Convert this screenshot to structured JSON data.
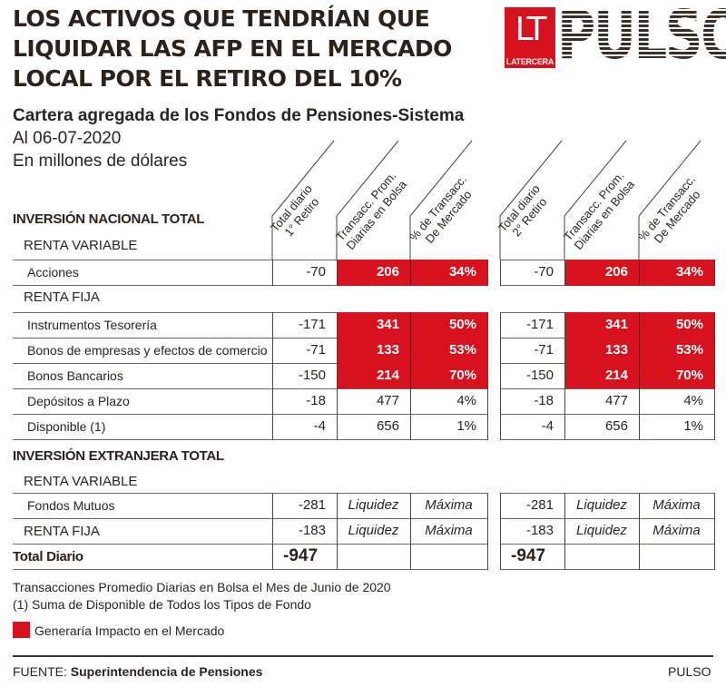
{
  "header": {
    "title_lines": [
      "LOS ACTIVOS QUE TENDRÍAN QUE",
      "LIQUIDAR LAS AFP EN EL MERCADO",
      "LOCAL POR EL RETIRO DEL 10%"
    ],
    "logo": {
      "lt": "LT",
      "lt_sub": "LATERCERA",
      "brand": "PULSO"
    },
    "subtitle": "Cartera agregada de los Fondos de Pensiones-Sistema",
    "date": "Al 06-07-2020",
    "units": "En millones de dólares"
  },
  "columns": {
    "first": [
      {
        "line1": "Total diario",
        "line2": "1° Retiro"
      },
      {
        "line1": "Transacc. Prom.",
        "line2": "Diarias en Bolsa"
      },
      {
        "line1": "% de Transacc.",
        "line2": "De Mercado"
      }
    ],
    "second": [
      {
        "line1": "Total diario",
        "line2": "2° Retiro"
      },
      {
        "line1": "Transacc. Prom.",
        "line2": "Diarias en Bolsa"
      },
      {
        "line1": "% de Transacc.",
        "line2": "De Mercado"
      }
    ]
  },
  "sections": {
    "nacional": "INVERSIÓN NACIONAL TOTAL",
    "nac_rv": "RENTA VARIABLE",
    "nac_rf": "RENTA FIJA",
    "extranjera": "INVERSIÓN EXTRANJERA TOTAL",
    "ext_rv": "RENTA VARIABLE"
  },
  "rows": [
    {
      "label": "Acciones",
      "total1": "-70",
      "trans1": "206",
      "pct1": "34%",
      "total2": "-70",
      "trans2": "206",
      "pct2": "34%",
      "impact": true
    },
    {
      "label": "Instrumentos Tesorería",
      "total1": "-171",
      "trans1": "341",
      "pct1": "50%",
      "total2": "-171",
      "trans2": "341",
      "pct2": "50%",
      "impact": true
    },
    {
      "label": "Bonos de empresas y efectos de comercio",
      "total1": "-71",
      "trans1": "133",
      "pct1": "53%",
      "total2": "-71",
      "trans2": "133",
      "pct2": "53%",
      "impact": true
    },
    {
      "label": "Bonos Bancarios",
      "total1": "-150",
      "trans1": "214",
      "pct1": "70%",
      "total2": "-150",
      "trans2": "214",
      "pct2": "70%",
      "impact": true
    },
    {
      "label": "Depósitos a Plazo",
      "total1": "-18",
      "trans1": "477",
      "pct1": "4%",
      "total2": "-18",
      "trans2": "477",
      "pct2": "4%",
      "impact": false
    },
    {
      "label": "Disponible (1)",
      "total1": "-4",
      "trans1": "656",
      "pct1": "1%",
      "total2": "-4",
      "trans2": "656",
      "pct2": "1%",
      "impact": false
    },
    {
      "label": "Fondos Mutuos",
      "total1": "-281",
      "trans1": "Liquidez",
      "pct1": "Máxima",
      "total2": "-281",
      "trans2": "Liquidez",
      "pct2": "Máxima",
      "impact": false
    },
    {
      "label": "RENTA FIJA",
      "total1": "-183",
      "trans1": "Liquidez",
      "pct1": "Máxima",
      "total2": "-183",
      "trans2": "Liquidez",
      "pct2": "Máxima",
      "impact": false
    }
  ],
  "total": {
    "label": "Total Diario",
    "total1": "-947",
    "total2": "-947"
  },
  "notes": {
    "note1": "Transacciones Promedio Diarias en Bolsa el Mes de Junio de 2020",
    "note2": "(1) Suma de Disponible de Todos los Tipos de Fondo",
    "legend": "Generaría Impacto en el Mercado",
    "legend_color": "#d7121e"
  },
  "footer": {
    "source_label": "FUENTE:",
    "source": "Superintendencia de Pensiones",
    "brand": "PULSO"
  }
}
